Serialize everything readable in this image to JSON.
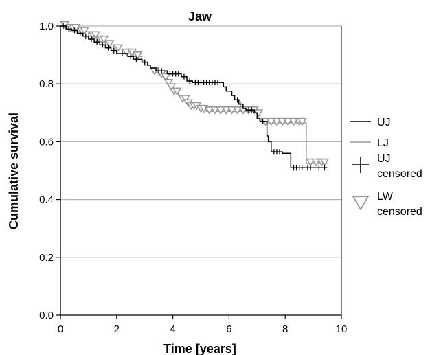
{
  "chart_data": {
    "type": "line",
    "step": true,
    "title": "Jaw",
    "xlabel": "Time [years]",
    "ylabel": "Cumulative survival",
    "xlim": [
      0,
      10
    ],
    "ylim": [
      0,
      1
    ],
    "xticks": [
      0,
      2,
      4,
      6,
      8,
      10
    ],
    "yticks": [
      0.0,
      0.2,
      0.4,
      0.6,
      0.8,
      1.0
    ],
    "xtick_labels": [
      "0",
      "2",
      "4",
      "6",
      "8",
      "10"
    ],
    "ytick_labels": [
      "0.0",
      "0.2",
      "0.4",
      "0.6",
      "0.8",
      "1.0"
    ],
    "grid": "horizontal",
    "legend_position": "right",
    "legend": [
      {
        "key": "uj",
        "lines": [
          "UJ"
        ],
        "symbol": "line",
        "color": "#000000"
      },
      {
        "key": "lj",
        "lines": [
          "LJ"
        ],
        "symbol": "line",
        "color": "#999999"
      },
      {
        "key": "ujc",
        "lines": [
          "UJ",
          "censored"
        ],
        "symbol": "plus",
        "color": "#000000"
      },
      {
        "key": "lwc",
        "lines": [
          "LW",
          "censored"
        ],
        "symbol": "triangle",
        "color": "#999999"
      }
    ],
    "series": [
      {
        "name": "UJ",
        "color": "#000000",
        "steps": [
          [
            0,
            1.0
          ],
          [
            0.2,
            0.99
          ],
          [
            0.4,
            0.985
          ],
          [
            0.6,
            0.975
          ],
          [
            0.8,
            0.965
          ],
          [
            1.0,
            0.955
          ],
          [
            1.2,
            0.945
          ],
          [
            1.4,
            0.935
          ],
          [
            1.6,
            0.925
          ],
          [
            1.8,
            0.915
          ],
          [
            2.0,
            0.905
          ],
          [
            2.4,
            0.895
          ],
          [
            2.6,
            0.885
          ],
          [
            2.9,
            0.875
          ],
          [
            3.1,
            0.865
          ],
          [
            3.2,
            0.855
          ],
          [
            3.4,
            0.845
          ],
          [
            3.8,
            0.835
          ],
          [
            4.3,
            0.825
          ],
          [
            4.5,
            0.81
          ],
          [
            4.7,
            0.805
          ],
          [
            5.8,
            0.79
          ],
          [
            5.9,
            0.775
          ],
          [
            6.1,
            0.76
          ],
          [
            6.2,
            0.745
          ],
          [
            6.35,
            0.73
          ],
          [
            6.5,
            0.715
          ],
          [
            6.6,
            0.71
          ],
          [
            6.9,
            0.7
          ],
          [
            7.0,
            0.68
          ],
          [
            7.1,
            0.67
          ],
          [
            7.35,
            0.62
          ],
          [
            7.4,
            0.6
          ],
          [
            7.5,
            0.565
          ],
          [
            7.9,
            0.56
          ],
          [
            8.2,
            0.51
          ],
          [
            9.5,
            0.51
          ]
        ],
        "censored": [
          0.1,
          0.3,
          0.5,
          0.7,
          0.9,
          1.1,
          1.3,
          1.5,
          1.7,
          1.9,
          2.2,
          2.5,
          2.7,
          3.0,
          3.5,
          3.6,
          3.9,
          4.0,
          4.1,
          4.2,
          4.4,
          4.6,
          4.8,
          4.9,
          5.0,
          5.1,
          5.2,
          5.3,
          5.4,
          5.5,
          5.6,
          6.3,
          6.4,
          6.7,
          6.8,
          7.2,
          7.6,
          7.7,
          7.8,
          8.3,
          8.4,
          8.5,
          8.6,
          8.8,
          8.9,
          9.2,
          9.4
        ]
      },
      {
        "name": "LJ",
        "color": "#999999",
        "steps": [
          [
            0,
            1.0
          ],
          [
            0.3,
            0.99
          ],
          [
            0.6,
            0.98
          ],
          [
            1.0,
            0.965
          ],
          [
            1.3,
            0.95
          ],
          [
            1.6,
            0.935
          ],
          [
            1.9,
            0.92
          ],
          [
            2.2,
            0.905
          ],
          [
            2.6,
            0.895
          ],
          [
            2.9,
            0.88
          ],
          [
            3.0,
            0.865
          ],
          [
            3.2,
            0.855
          ],
          [
            3.3,
            0.84
          ],
          [
            3.5,
            0.83
          ],
          [
            3.7,
            0.82
          ],
          [
            3.8,
            0.8
          ],
          [
            3.9,
            0.785
          ],
          [
            4.0,
            0.77
          ],
          [
            4.2,
            0.76
          ],
          [
            4.3,
            0.745
          ],
          [
            4.5,
            0.73
          ],
          [
            4.6,
            0.72
          ],
          [
            5.0,
            0.71
          ],
          [
            5.2,
            0.705
          ],
          [
            7.0,
            0.695
          ],
          [
            7.1,
            0.675
          ],
          [
            7.2,
            0.665
          ],
          [
            8.7,
            0.665
          ],
          [
            8.75,
            0.525
          ],
          [
            9.5,
            0.525
          ]
        ],
        "censored": [
          0.15,
          0.35,
          0.45,
          0.55,
          0.75,
          0.85,
          1.15,
          1.25,
          1.45,
          1.55,
          1.75,
          2.05,
          2.35,
          2.55,
          2.75,
          3.35,
          3.6,
          3.75,
          3.85,
          3.95,
          4.05,
          4.15,
          4.35,
          4.45,
          4.55,
          4.65,
          4.75,
          4.85,
          5.0,
          5.1,
          5.3,
          5.5,
          5.7,
          5.9,
          6.1,
          6.3,
          6.5,
          6.7,
          6.9,
          7.05,
          7.3,
          7.5,
          7.7,
          7.9,
          8.1,
          8.3,
          8.5,
          8.6,
          8.9,
          9.1,
          9.3,
          9.4
        ]
      }
    ]
  }
}
